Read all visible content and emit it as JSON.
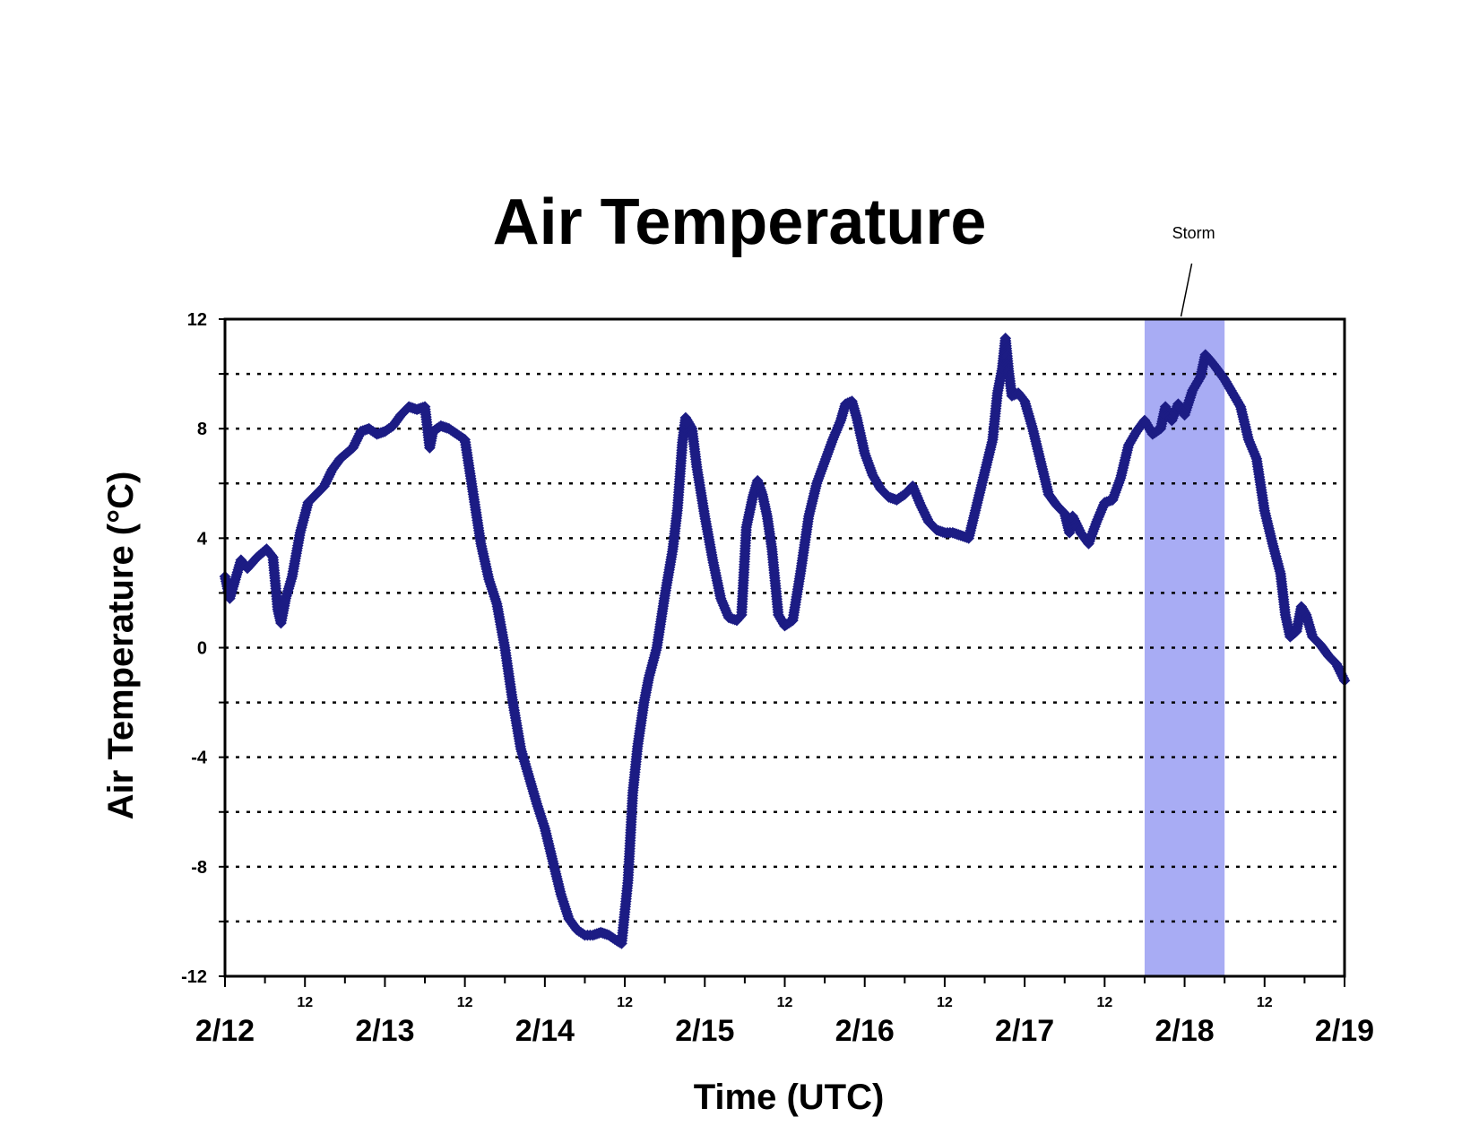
{
  "chart_data": {
    "type": "scatter",
    "title": "Air Temperature",
    "xlabel": "Time (UTC)",
    "ylabel": "Air Temperature (°C)",
    "ylim": [
      -12,
      12
    ],
    "yticks": [
      "12",
      "8",
      "4",
      "0",
      "-4",
      "-8",
      "-12"
    ],
    "ytick_values": [
      12,
      8,
      4,
      0,
      -4,
      -8,
      -12
    ],
    "grid_values": [
      10,
      8,
      6,
      4,
      2,
      0,
      -2,
      -4,
      -6,
      -8,
      -10
    ],
    "xlim_days": [
      "2/12",
      "2/19"
    ],
    "x_major_ticks": [
      "2/12",
      "2/13",
      "2/14",
      "2/15",
      "2/16",
      "2/17",
      "2/18",
      "2/19"
    ],
    "x_minor_tick_label": "12",
    "series_color": "#1c1c84",
    "storm_shade_color": "#a8acf4",
    "storm": {
      "label": "Storm",
      "start": "2/17 18:00",
      "end": "2/18 06:00"
    },
    "x_unit": "days after 2/12 00 UTC",
    "points": [
      [
        0.0,
        2.6
      ],
      [
        0.03,
        1.8
      ],
      [
        0.06,
        2.4
      ],
      [
        0.1,
        3.2
      ],
      [
        0.14,
        2.9
      ],
      [
        0.2,
        3.3
      ],
      [
        0.26,
        3.6
      ],
      [
        0.3,
        3.3
      ],
      [
        0.33,
        1.4
      ],
      [
        0.35,
        0.9
      ],
      [
        0.38,
        1.8
      ],
      [
        0.42,
        2.6
      ],
      [
        0.47,
        4.2
      ],
      [
        0.52,
        5.3
      ],
      [
        0.57,
        5.6
      ],
      [
        0.62,
        5.9
      ],
      [
        0.67,
        6.5
      ],
      [
        0.72,
        6.9
      ],
      [
        0.8,
        7.3
      ],
      [
        0.85,
        7.9
      ],
      [
        0.9,
        8.0
      ],
      [
        0.95,
        7.8
      ],
      [
        1.0,
        7.9
      ],
      [
        1.05,
        8.1
      ],
      [
        1.1,
        8.5
      ],
      [
        1.15,
        8.8
      ],
      [
        1.2,
        8.7
      ],
      [
        1.25,
        8.8
      ],
      [
        1.28,
        7.3
      ],
      [
        1.3,
        7.9
      ],
      [
        1.35,
        8.1
      ],
      [
        1.4,
        8.0
      ],
      [
        1.45,
        7.8
      ],
      [
        1.5,
        7.6
      ],
      [
        1.55,
        5.7
      ],
      [
        1.6,
        3.8
      ],
      [
        1.65,
        2.5
      ],
      [
        1.7,
        1.6
      ],
      [
        1.75,
        0.0
      ],
      [
        1.8,
        -2.0
      ],
      [
        1.85,
        -3.7
      ],
      [
        1.9,
        -4.7
      ],
      [
        1.95,
        -5.7
      ],
      [
        2.0,
        -6.6
      ],
      [
        2.05,
        -7.8
      ],
      [
        2.1,
        -9.0
      ],
      [
        2.15,
        -9.9
      ],
      [
        2.2,
        -10.3
      ],
      [
        2.25,
        -10.5
      ],
      [
        2.3,
        -10.5
      ],
      [
        2.35,
        -10.4
      ],
      [
        2.4,
        -10.5
      ],
      [
        2.45,
        -10.7
      ],
      [
        2.48,
        -10.8
      ],
      [
        2.52,
        -8.5
      ],
      [
        2.55,
        -5.3
      ],
      [
        2.58,
        -3.6
      ],
      [
        2.62,
        -2.0
      ],
      [
        2.65,
        -1.1
      ],
      [
        2.7,
        0.0
      ],
      [
        2.75,
        1.9
      ],
      [
        2.8,
        3.6
      ],
      [
        2.83,
        5.1
      ],
      [
        2.86,
        7.5
      ],
      [
        2.88,
        8.4
      ],
      [
        2.92,
        8.0
      ],
      [
        2.95,
        6.6
      ],
      [
        3.0,
        4.8
      ],
      [
        3.05,
        3.2
      ],
      [
        3.1,
        1.8
      ],
      [
        3.15,
        1.1
      ],
      [
        3.2,
        1.0
      ],
      [
        3.23,
        1.2
      ],
      [
        3.26,
        4.4
      ],
      [
        3.3,
        5.5
      ],
      [
        3.33,
        6.1
      ],
      [
        3.36,
        5.6
      ],
      [
        3.39,
        4.8
      ],
      [
        3.42,
        3.6
      ],
      [
        3.46,
        1.2
      ],
      [
        3.5,
        0.8
      ],
      [
        3.55,
        1.0
      ],
      [
        3.6,
        2.8
      ],
      [
        3.65,
        4.8
      ],
      [
        3.7,
        6.0
      ],
      [
        3.75,
        6.8
      ],
      [
        3.8,
        7.6
      ],
      [
        3.85,
        8.3
      ],
      [
        3.88,
        8.9
      ],
      [
        3.92,
        9.0
      ],
      [
        3.95,
        8.4
      ],
      [
        4.0,
        7.1
      ],
      [
        4.05,
        6.3
      ],
      [
        4.1,
        5.8
      ],
      [
        4.15,
        5.5
      ],
      [
        4.2,
        5.4
      ],
      [
        4.25,
        5.6
      ],
      [
        4.3,
        5.9
      ],
      [
        4.35,
        5.2
      ],
      [
        4.4,
        4.6
      ],
      [
        4.45,
        4.3
      ],
      [
        4.5,
        4.2
      ],
      [
        4.55,
        4.2
      ],
      [
        4.6,
        4.1
      ],
      [
        4.65,
        4.0
      ],
      [
        4.7,
        5.2
      ],
      [
        4.75,
        6.4
      ],
      [
        4.8,
        7.6
      ],
      [
        4.83,
        9.3
      ],
      [
        4.86,
        10.2
      ],
      [
        4.88,
        11.3
      ],
      [
        4.9,
        10.1
      ],
      [
        4.92,
        9.2
      ],
      [
        4.96,
        9.3
      ],
      [
        5.0,
        9.0
      ],
      [
        5.05,
        8.0
      ],
      [
        5.1,
        6.8
      ],
      [
        5.15,
        5.6
      ],
      [
        5.2,
        5.2
      ],
      [
        5.25,
        4.9
      ],
      [
        5.28,
        4.2
      ],
      [
        5.3,
        4.8
      ],
      [
        5.35,
        4.2
      ],
      [
        5.4,
        3.8
      ],
      [
        5.45,
        4.6
      ],
      [
        5.5,
        5.3
      ],
      [
        5.55,
        5.4
      ],
      [
        5.6,
        6.2
      ],
      [
        5.65,
        7.4
      ],
      [
        5.7,
        7.9
      ],
      [
        5.75,
        8.3
      ],
      [
        5.8,
        7.8
      ],
      [
        5.85,
        8.0
      ],
      [
        5.88,
        8.8
      ],
      [
        5.92,
        8.3
      ],
      [
        5.96,
        8.9
      ],
      [
        6.0,
        8.5
      ],
      [
        6.05,
        9.4
      ],
      [
        6.1,
        9.9
      ],
      [
        6.13,
        10.7
      ],
      [
        6.16,
        10.5
      ],
      [
        6.2,
        10.2
      ],
      [
        6.25,
        9.8
      ],
      [
        6.3,
        9.3
      ],
      [
        6.35,
        8.8
      ],
      [
        6.4,
        7.6
      ],
      [
        6.45,
        6.9
      ],
      [
        6.5,
        5.0
      ],
      [
        6.55,
        3.8
      ],
      [
        6.6,
        2.7
      ],
      [
        6.63,
        1.2
      ],
      [
        6.66,
        0.4
      ],
      [
        6.7,
        0.6
      ],
      [
        6.73,
        1.5
      ],
      [
        6.76,
        1.2
      ],
      [
        6.8,
        0.4
      ],
      [
        6.85,
        0.1
      ],
      [
        6.9,
        -0.3
      ],
      [
        6.95,
        -0.6
      ],
      [
        7.0,
        -1.2
      ]
    ]
  }
}
